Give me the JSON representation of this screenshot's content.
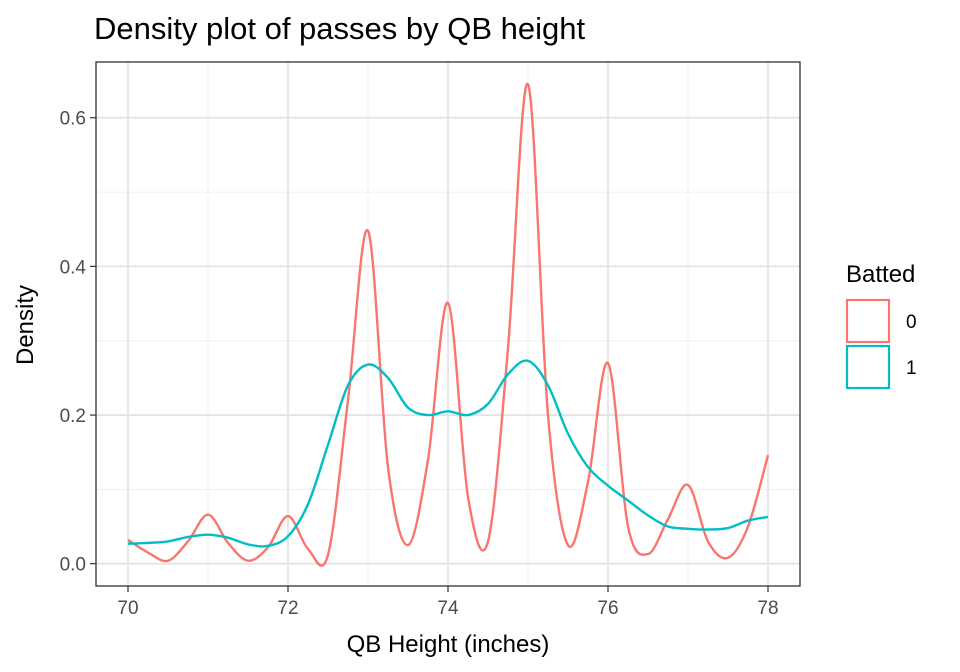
{
  "chart_data": {
    "type": "line",
    "title": "Density plot of passes by QB height",
    "xlabel": "QB Height (inches)",
    "ylabel": "Density",
    "xlim": [
      69.6,
      78.4
    ],
    "ylim": [
      -0.03,
      0.675
    ],
    "x_ticks": [
      70,
      72,
      74,
      76,
      78
    ],
    "x_tick_labels": [
      "70",
      "72",
      "74",
      "76",
      "78"
    ],
    "y_ticks": [
      0.0,
      0.2,
      0.4,
      0.6
    ],
    "y_tick_labels": [
      "0.0",
      "0.2",
      "0.4",
      "0.6"
    ],
    "grid": true,
    "legend": {
      "title": "Batted",
      "position": "right"
    },
    "series": [
      {
        "name": "0",
        "color": "#F8766D",
        "x": [
          70,
          70.25,
          70.5,
          70.75,
          71,
          71.25,
          71.5,
          71.75,
          72,
          72.25,
          72.5,
          72.75,
          73,
          73.25,
          73.5,
          73.75,
          74,
          74.25,
          74.5,
          74.75,
          75,
          75.25,
          75.5,
          75.75,
          76,
          76.25,
          76.5,
          76.75,
          77,
          77.25,
          77.5,
          77.75,
          78
        ],
        "y": [
          0.032,
          0.015,
          0.004,
          0.03,
          0.066,
          0.028,
          0.004,
          0.022,
          0.064,
          0.02,
          0.012,
          0.22,
          0.448,
          0.13,
          0.025,
          0.14,
          0.351,
          0.09,
          0.03,
          0.29,
          0.645,
          0.2,
          0.025,
          0.11,
          0.27,
          0.05,
          0.013,
          0.06,
          0.106,
          0.03,
          0.008,
          0.05,
          0.146
        ]
      },
      {
        "name": "1",
        "color": "#00BFC4",
        "x": [
          70,
          70.25,
          70.5,
          70.75,
          71,
          71.25,
          71.5,
          71.75,
          72,
          72.25,
          72.5,
          72.75,
          73,
          73.25,
          73.5,
          73.75,
          74,
          74.25,
          74.5,
          74.75,
          75,
          75.25,
          75.5,
          75.75,
          76,
          76.25,
          76.5,
          76.75,
          77,
          77.25,
          77.5,
          77.75,
          78
        ],
        "y": [
          0.027,
          0.028,
          0.03,
          0.036,
          0.039,
          0.035,
          0.026,
          0.024,
          0.037,
          0.08,
          0.16,
          0.24,
          0.268,
          0.25,
          0.21,
          0.2,
          0.205,
          0.2,
          0.215,
          0.255,
          0.273,
          0.24,
          0.175,
          0.13,
          0.105,
          0.085,
          0.065,
          0.05,
          0.047,
          0.046,
          0.048,
          0.058,
          0.063
        ]
      }
    ]
  }
}
